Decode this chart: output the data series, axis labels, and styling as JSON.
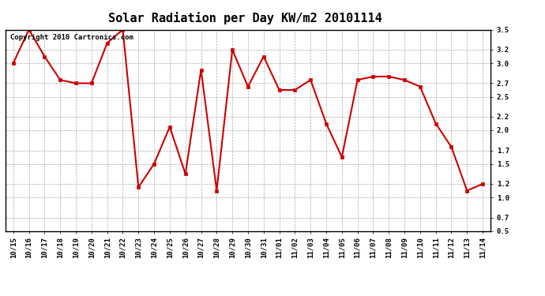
{
  "title": "Solar Radiation per Day KW/m2 20101114",
  "copyright": "Copyright 2010 Cartronics.com",
  "labels": [
    "10/15",
    "10/16",
    "10/17",
    "10/18",
    "10/19",
    "10/20",
    "10/21",
    "10/22",
    "10/23",
    "10/24",
    "10/25",
    "10/26",
    "10/27",
    "10/28",
    "10/29",
    "10/30",
    "10/31",
    "11/01",
    "11/02",
    "11/03",
    "11/04",
    "11/05",
    "11/06",
    "11/07",
    "11/08",
    "11/09",
    "11/10",
    "11/11",
    "11/12",
    "11/13",
    "11/14"
  ],
  "values": [
    3.0,
    3.5,
    3.1,
    2.75,
    2.7,
    2.7,
    3.3,
    3.5,
    1.15,
    1.5,
    2.05,
    1.35,
    2.9,
    1.1,
    3.2,
    2.65,
    3.1,
    2.6,
    2.6,
    2.75,
    2.1,
    1.6,
    2.75,
    2.8,
    2.8,
    2.75,
    2.65,
    2.1,
    1.75,
    1.1,
    1.2
  ],
  "line_color": "#cc0000",
  "marker": "s",
  "marker_color": "#cc0000",
  "marker_size": 3,
  "ylim": [
    0.5,
    3.5
  ],
  "yticks": [
    0.5,
    0.7,
    1.0,
    1.2,
    1.5,
    1.7,
    2.0,
    2.2,
    2.5,
    2.7,
    3.0,
    3.2,
    3.5
  ],
  "ytick_labels": [
    "0.5",
    "0.7",
    "1.0",
    "1.2",
    "1.5",
    "1.7",
    "2.0",
    "2.2",
    "2.5",
    "2.7",
    "3.0",
    "3.2",
    "3.5"
  ],
  "background_color": "#ffffff",
  "grid_color": "#aaaaaa",
  "title_fontsize": 11,
  "copyright_fontsize": 6.5,
  "tick_fontsize": 6.5,
  "line_width": 1.5
}
